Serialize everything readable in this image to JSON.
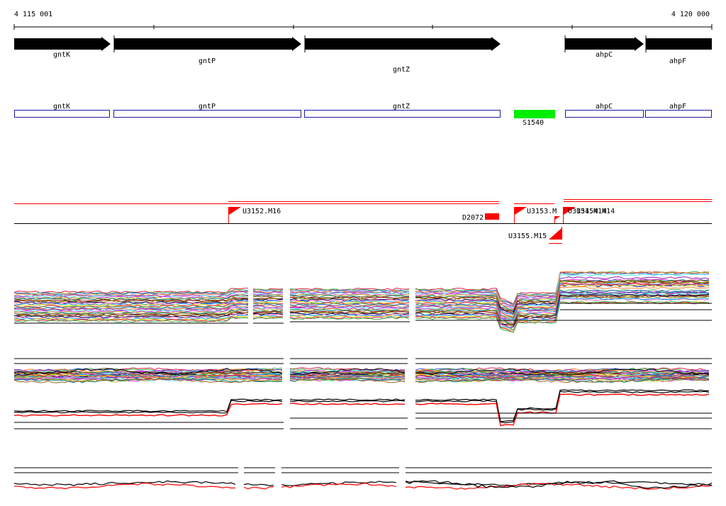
{
  "coordinates": {
    "start_label": "4 115 001",
    "end_label": "4 120 000"
  },
  "genes": [
    {
      "name": "gntK"
    },
    {
      "name": "gntP"
    },
    {
      "name": "gntZ"
    },
    {
      "name": "ahpC"
    },
    {
      "name": "ahpF"
    }
  ],
  "annotations": {
    "boxes": [
      "gntK",
      "gntP",
      "gntZ",
      "ahpC",
      "ahpF"
    ],
    "srna_label": "S1540",
    "srna_color": "#00ee00",
    "box_color": "#1a1aa6"
  },
  "features": {
    "color": "#ff0000",
    "flags": [
      "U3152.M16",
      "U3153.M",
      "U3155.M15",
      "U3154.M14"
    ],
    "block_label": "D2072"
  },
  "expression": {
    "palette": [
      "#e6194b",
      "#3cb44b",
      "#4363d8",
      "#f58231",
      "#911eb4",
      "#46f0f0",
      "#f032e6",
      "#bcbd22",
      "#008080",
      "#9a6324",
      "#800000",
      "#808000",
      "#000075",
      "#ff69b4",
      "#00a0ff",
      "#ffd700"
    ],
    "highlight_color": "#ff0000"
  }
}
